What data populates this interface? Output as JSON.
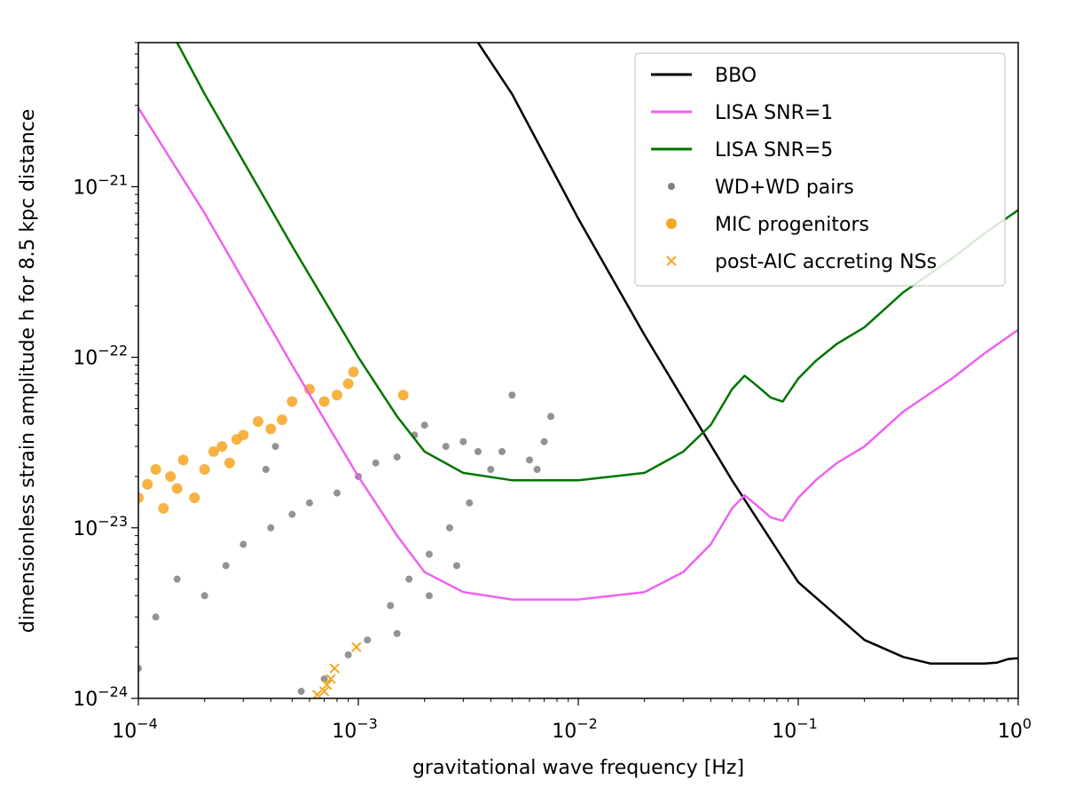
{
  "chart_data": {
    "type": "line",
    "title": "",
    "xlabel": "gravitational wave frequency [Hz]",
    "ylabel": "dimensionless strain amplitude h for 8.5 kpc distance",
    "xscale": "log",
    "yscale": "log",
    "xlim": [
      0.0001,
      1
    ],
    "ylim": [
      1e-24,
      7e-21
    ],
    "x_ticks": [
      {
        "value": 0.0001,
        "base": "10",
        "exp": "−4"
      },
      {
        "value": 0.001,
        "base": "10",
        "exp": "−3"
      },
      {
        "value": 0.01,
        "base": "10",
        "exp": "−2"
      },
      {
        "value": 0.1,
        "base": "10",
        "exp": "−1"
      },
      {
        "value": 1,
        "base": "10",
        "exp": "0"
      }
    ],
    "y_ticks": [
      {
        "value": 1e-24,
        "base": "10",
        "exp": "−24"
      },
      {
        "value": 1e-23,
        "base": "10",
        "exp": "−23"
      },
      {
        "value": 1e-22,
        "base": "10",
        "exp": "−22"
      },
      {
        "value": 1e-21,
        "base": "10",
        "exp": "−21"
      }
    ],
    "legend_position": "top-right",
    "series": [
      {
        "name": "BBO",
        "kind": "line",
        "color": "#000000",
        "x": [
          0.0035,
          0.005,
          0.01,
          0.02,
          0.05,
          0.1,
          0.2,
          0.3,
          0.4,
          0.5,
          0.7,
          0.8,
          0.9,
          1.0
        ],
        "y": [
          7e-21,
          3.5e-21,
          6.5e-22,
          1.35e-22,
          1.9e-23,
          4.8e-24,
          2.2e-24,
          1.75e-24,
          1.6e-24,
          1.6e-24,
          1.6e-24,
          1.62e-24,
          1.7e-24,
          1.72e-24
        ]
      },
      {
        "name": "LISA SNR=1",
        "kind": "line",
        "color": "#f060f0",
        "x": [
          0.0001,
          0.0002,
          0.0005,
          0.001,
          0.0015,
          0.002,
          0.003,
          0.005,
          0.01,
          0.02,
          0.03,
          0.04,
          0.05,
          0.057,
          0.065,
          0.075,
          0.085,
          0.1,
          0.12,
          0.15,
          0.2,
          0.3,
          0.5,
          0.7,
          1.0
        ],
        "y": [
          2.9e-21,
          7e-22,
          9e-23,
          2e-23,
          9e-24,
          5.5e-24,
          4.2e-24,
          3.8e-24,
          3.8e-24,
          4.2e-24,
          5.5e-24,
          8e-24,
          1.3e-23,
          1.55e-23,
          1.35e-23,
          1.15e-23,
          1.1e-23,
          1.5e-23,
          1.9e-23,
          2.4e-23,
          3e-23,
          4.8e-23,
          7.5e-23,
          1.05e-22,
          1.45e-22
        ]
      },
      {
        "name": "LISA SNR=5",
        "kind": "line",
        "color": "#007500",
        "x": [
          0.00015,
          0.0002,
          0.0005,
          0.001,
          0.0015,
          0.002,
          0.003,
          0.005,
          0.01,
          0.02,
          0.03,
          0.04,
          0.05,
          0.057,
          0.065,
          0.075,
          0.085,
          0.1,
          0.12,
          0.15,
          0.2,
          0.3,
          0.5,
          0.7,
          1.0
        ],
        "y": [
          7e-21,
          3.5e-21,
          4.5e-22,
          1e-22,
          4.5e-23,
          2.8e-23,
          2.1e-23,
          1.9e-23,
          1.9e-23,
          2.1e-23,
          2.8e-23,
          4e-23,
          6.5e-23,
          7.8e-23,
          6.8e-23,
          5.8e-23,
          5.5e-23,
          7.5e-23,
          9.5e-23,
          1.2e-22,
          1.5e-22,
          2.4e-22,
          3.8e-22,
          5.3e-22,
          7.3e-22
        ]
      },
      {
        "name": "WD+WD pairs",
        "kind": "scatter",
        "color": "#808080",
        "x": [
          0.0001,
          0.00012,
          0.00015,
          0.0002,
          0.00025,
          0.0003,
          0.0004,
          0.0005,
          0.0006,
          0.0008,
          0.001,
          0.0012,
          0.0015,
          0.0018,
          0.002,
          0.0025,
          0.003,
          0.0035,
          0.004,
          0.0045,
          0.005,
          0.006,
          0.0065,
          0.007,
          0.0075,
          0.00055,
          0.0007,
          0.0009,
          0.0011,
          0.0014,
          0.0017,
          0.0021,
          0.0026,
          0.0032,
          0.00038,
          0.00042,
          0.0015,
          0.0021,
          0.0028
        ],
        "y": [
          1.5e-24,
          3e-24,
          5e-24,
          4e-24,
          6e-24,
          8e-24,
          1e-23,
          1.2e-23,
          1.4e-23,
          1.6e-23,
          2e-23,
          2.4e-23,
          2.6e-23,
          3.5e-23,
          4e-23,
          3e-23,
          3.2e-23,
          2.8e-23,
          2.2e-23,
          2.8e-23,
          6e-23,
          2.5e-23,
          2.2e-23,
          3.2e-23,
          4.5e-23,
          1.1e-24,
          1.3e-24,
          1.8e-24,
          2.2e-24,
          3.5e-24,
          5e-24,
          7e-24,
          1e-23,
          1.4e-23,
          2.2e-23,
          3e-23,
          2.4e-24,
          4e-24,
          6e-24
        ]
      },
      {
        "name": "MIC progenitors",
        "kind": "scatter",
        "color": "#f5a623",
        "x": [
          0.0001,
          0.00011,
          0.00012,
          0.00013,
          0.00014,
          0.00015,
          0.00016,
          0.00018,
          0.0002,
          0.00022,
          0.00024,
          0.00026,
          0.00028,
          0.0003,
          0.00035,
          0.0004,
          0.00045,
          0.0005,
          0.0006,
          0.0007,
          0.0008,
          0.0009,
          0.00095,
          0.0016
        ],
        "y": [
          1.5e-23,
          1.8e-23,
          2.2e-23,
          1.3e-23,
          2e-23,
          1.7e-23,
          2.5e-23,
          1.5e-23,
          2.2e-23,
          2.8e-23,
          3e-23,
          2.4e-23,
          3.3e-23,
          3.5e-23,
          4.2e-23,
          3.8e-23,
          4.3e-23,
          5.5e-23,
          6.5e-23,
          5.5e-23,
          6e-23,
          7e-23,
          8.2e-23,
          6e-23
        ]
      },
      {
        "name": "post-AIC accreting NSs",
        "kind": "x-marker",
        "color": "#f5a623",
        "x": [
          0.00065,
          0.0007,
          0.00072,
          0.00075,
          0.00078,
          0.00098
        ],
        "y": [
          1.05e-24,
          1.1e-24,
          1.2e-24,
          1.3e-24,
          1.5e-24,
          2e-24
        ]
      }
    ]
  }
}
